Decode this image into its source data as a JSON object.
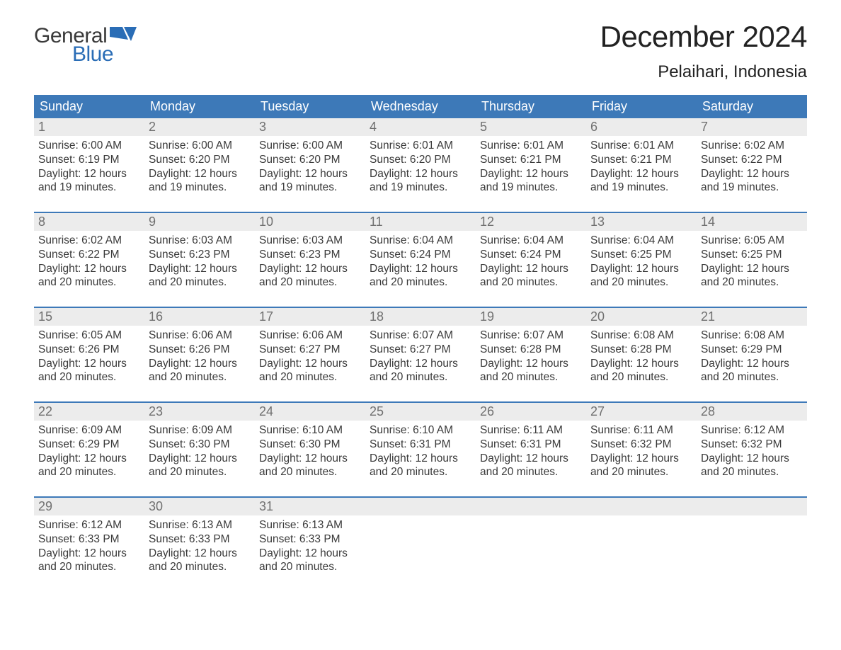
{
  "logo": {
    "word1": "General",
    "word2": "Blue",
    "flag_color": "#2a6db6"
  },
  "title": "December 2024",
  "location": "Pelaihari, Indonesia",
  "colors": {
    "header_bg": "#3d79b8",
    "header_text": "#ffffff",
    "daynum_bg": "#ececec",
    "daynum_text": "#707070",
    "body_text": "#3a3a3a",
    "week_border": "#3d79b8"
  },
  "typography": {
    "title_fontsize": 42,
    "location_fontsize": 24,
    "header_fontsize": 18,
    "day_fontsize": 15.5
  },
  "day_names": [
    "Sunday",
    "Monday",
    "Tuesday",
    "Wednesday",
    "Thursday",
    "Friday",
    "Saturday"
  ],
  "weeks": [
    [
      {
        "n": "1",
        "sunrise": "Sunrise: 6:00 AM",
        "sunset": "Sunset: 6:19 PM",
        "d1": "Daylight: 12 hours",
        "d2": "and 19 minutes."
      },
      {
        "n": "2",
        "sunrise": "Sunrise: 6:00 AM",
        "sunset": "Sunset: 6:20 PM",
        "d1": "Daylight: 12 hours",
        "d2": "and 19 minutes."
      },
      {
        "n": "3",
        "sunrise": "Sunrise: 6:00 AM",
        "sunset": "Sunset: 6:20 PM",
        "d1": "Daylight: 12 hours",
        "d2": "and 19 minutes."
      },
      {
        "n": "4",
        "sunrise": "Sunrise: 6:01 AM",
        "sunset": "Sunset: 6:20 PM",
        "d1": "Daylight: 12 hours",
        "d2": "and 19 minutes."
      },
      {
        "n": "5",
        "sunrise": "Sunrise: 6:01 AM",
        "sunset": "Sunset: 6:21 PM",
        "d1": "Daylight: 12 hours",
        "d2": "and 19 minutes."
      },
      {
        "n": "6",
        "sunrise": "Sunrise: 6:01 AM",
        "sunset": "Sunset: 6:21 PM",
        "d1": "Daylight: 12 hours",
        "d2": "and 19 minutes."
      },
      {
        "n": "7",
        "sunrise": "Sunrise: 6:02 AM",
        "sunset": "Sunset: 6:22 PM",
        "d1": "Daylight: 12 hours",
        "d2": "and 19 minutes."
      }
    ],
    [
      {
        "n": "8",
        "sunrise": "Sunrise: 6:02 AM",
        "sunset": "Sunset: 6:22 PM",
        "d1": "Daylight: 12 hours",
        "d2": "and 20 minutes."
      },
      {
        "n": "9",
        "sunrise": "Sunrise: 6:03 AM",
        "sunset": "Sunset: 6:23 PM",
        "d1": "Daylight: 12 hours",
        "d2": "and 20 minutes."
      },
      {
        "n": "10",
        "sunrise": "Sunrise: 6:03 AM",
        "sunset": "Sunset: 6:23 PM",
        "d1": "Daylight: 12 hours",
        "d2": "and 20 minutes."
      },
      {
        "n": "11",
        "sunrise": "Sunrise: 6:04 AM",
        "sunset": "Sunset: 6:24 PM",
        "d1": "Daylight: 12 hours",
        "d2": "and 20 minutes."
      },
      {
        "n": "12",
        "sunrise": "Sunrise: 6:04 AM",
        "sunset": "Sunset: 6:24 PM",
        "d1": "Daylight: 12 hours",
        "d2": "and 20 minutes."
      },
      {
        "n": "13",
        "sunrise": "Sunrise: 6:04 AM",
        "sunset": "Sunset: 6:25 PM",
        "d1": "Daylight: 12 hours",
        "d2": "and 20 minutes."
      },
      {
        "n": "14",
        "sunrise": "Sunrise: 6:05 AM",
        "sunset": "Sunset: 6:25 PM",
        "d1": "Daylight: 12 hours",
        "d2": "and 20 minutes."
      }
    ],
    [
      {
        "n": "15",
        "sunrise": "Sunrise: 6:05 AM",
        "sunset": "Sunset: 6:26 PM",
        "d1": "Daylight: 12 hours",
        "d2": "and 20 minutes."
      },
      {
        "n": "16",
        "sunrise": "Sunrise: 6:06 AM",
        "sunset": "Sunset: 6:26 PM",
        "d1": "Daylight: 12 hours",
        "d2": "and 20 minutes."
      },
      {
        "n": "17",
        "sunrise": "Sunrise: 6:06 AM",
        "sunset": "Sunset: 6:27 PM",
        "d1": "Daylight: 12 hours",
        "d2": "and 20 minutes."
      },
      {
        "n": "18",
        "sunrise": "Sunrise: 6:07 AM",
        "sunset": "Sunset: 6:27 PM",
        "d1": "Daylight: 12 hours",
        "d2": "and 20 minutes."
      },
      {
        "n": "19",
        "sunrise": "Sunrise: 6:07 AM",
        "sunset": "Sunset: 6:28 PM",
        "d1": "Daylight: 12 hours",
        "d2": "and 20 minutes."
      },
      {
        "n": "20",
        "sunrise": "Sunrise: 6:08 AM",
        "sunset": "Sunset: 6:28 PM",
        "d1": "Daylight: 12 hours",
        "d2": "and 20 minutes."
      },
      {
        "n": "21",
        "sunrise": "Sunrise: 6:08 AM",
        "sunset": "Sunset: 6:29 PM",
        "d1": "Daylight: 12 hours",
        "d2": "and 20 minutes."
      }
    ],
    [
      {
        "n": "22",
        "sunrise": "Sunrise: 6:09 AM",
        "sunset": "Sunset: 6:29 PM",
        "d1": "Daylight: 12 hours",
        "d2": "and 20 minutes."
      },
      {
        "n": "23",
        "sunrise": "Sunrise: 6:09 AM",
        "sunset": "Sunset: 6:30 PM",
        "d1": "Daylight: 12 hours",
        "d2": "and 20 minutes."
      },
      {
        "n": "24",
        "sunrise": "Sunrise: 6:10 AM",
        "sunset": "Sunset: 6:30 PM",
        "d1": "Daylight: 12 hours",
        "d2": "and 20 minutes."
      },
      {
        "n": "25",
        "sunrise": "Sunrise: 6:10 AM",
        "sunset": "Sunset: 6:31 PM",
        "d1": "Daylight: 12 hours",
        "d2": "and 20 minutes."
      },
      {
        "n": "26",
        "sunrise": "Sunrise: 6:11 AM",
        "sunset": "Sunset: 6:31 PM",
        "d1": "Daylight: 12 hours",
        "d2": "and 20 minutes."
      },
      {
        "n": "27",
        "sunrise": "Sunrise: 6:11 AM",
        "sunset": "Sunset: 6:32 PM",
        "d1": "Daylight: 12 hours",
        "d2": "and 20 minutes."
      },
      {
        "n": "28",
        "sunrise": "Sunrise: 6:12 AM",
        "sunset": "Sunset: 6:32 PM",
        "d1": "Daylight: 12 hours",
        "d2": "and 20 minutes."
      }
    ],
    [
      {
        "n": "29",
        "sunrise": "Sunrise: 6:12 AM",
        "sunset": "Sunset: 6:33 PM",
        "d1": "Daylight: 12 hours",
        "d2": "and 20 minutes."
      },
      {
        "n": "30",
        "sunrise": "Sunrise: 6:13 AM",
        "sunset": "Sunset: 6:33 PM",
        "d1": "Daylight: 12 hours",
        "d2": "and 20 minutes."
      },
      {
        "n": "31",
        "sunrise": "Sunrise: 6:13 AM",
        "sunset": "Sunset: 6:33 PM",
        "d1": "Daylight: 12 hours",
        "d2": "and 20 minutes."
      },
      null,
      null,
      null,
      null
    ]
  ]
}
